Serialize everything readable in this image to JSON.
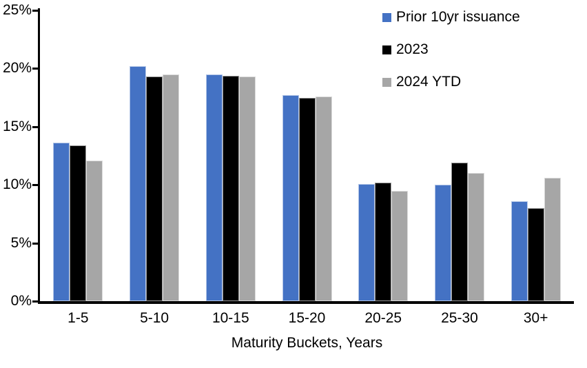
{
  "chart_data": {
    "type": "bar",
    "title": "",
    "xlabel": "Maturity Buckets, Years",
    "ylabel": "",
    "ylim": [
      0,
      25
    ],
    "ytick_step": 5,
    "ytick_labels": [
      "0%",
      "5%",
      "10%",
      "15%",
      "20%",
      "25%"
    ],
    "grid": false,
    "legend_position": "top-right",
    "categories": [
      "1-5",
      "5-10",
      "10-15",
      "15-20",
      "20-25",
      "25-30",
      "30+"
    ],
    "series": [
      {
        "name": "Prior 10yr issuance",
        "color": "#4472C4",
        "values": [
          13.6,
          20.2,
          19.5,
          17.7,
          10.1,
          10.0,
          8.6
        ]
      },
      {
        "name": "2023",
        "color": "#000000",
        "values": [
          13.4,
          19.3,
          19.4,
          17.5,
          10.2,
          11.9,
          8.0
        ]
      },
      {
        "name": "2024 YTD",
        "color": "#A6A6A6",
        "values": [
          12.1,
          19.5,
          19.3,
          17.6,
          9.5,
          11.0,
          10.6
        ]
      }
    ]
  }
}
